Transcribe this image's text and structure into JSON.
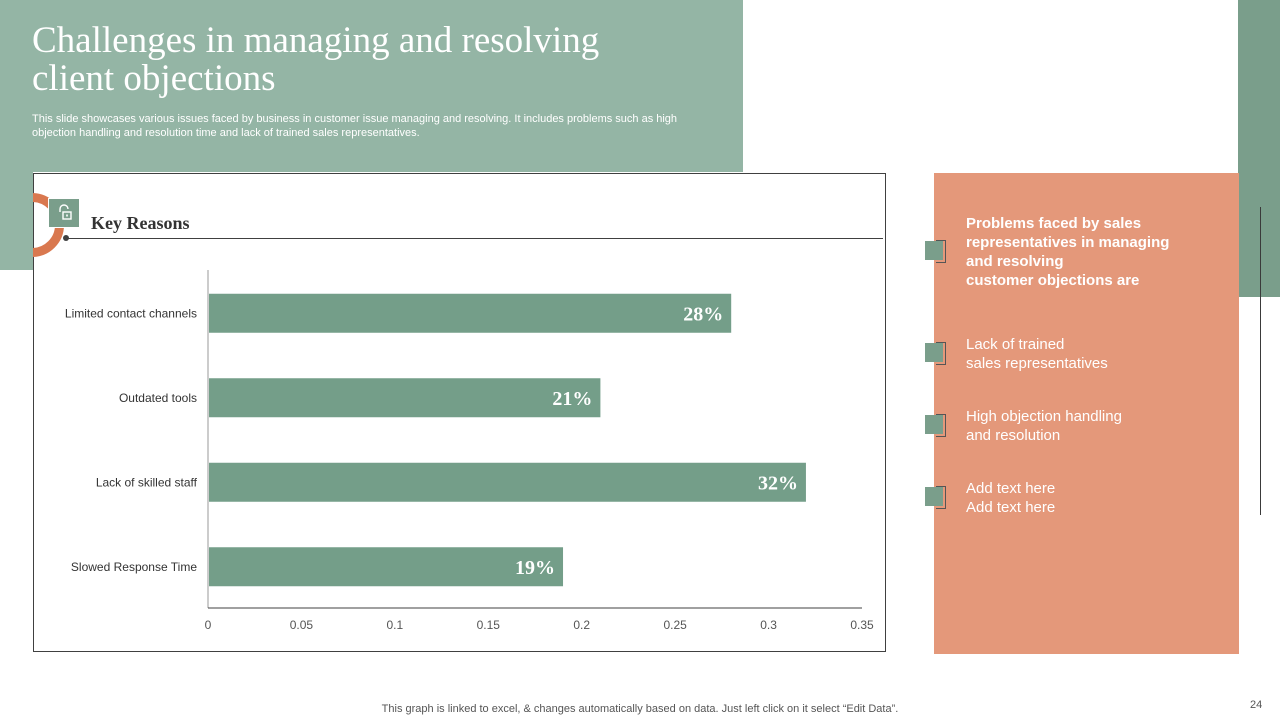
{
  "slide": {
    "title": "Challenges in managing and resolving client objections",
    "subtitle": "This slide showcases various issues faced by business in customer issue managing and resolving. It includes problems such as high objection handling and resolution time and lack of trained sales representatives.",
    "footer_note": "This graph is linked to excel, & changes automatically based on data. Just left click on it select “Edit Data”.",
    "page_number": "24"
  },
  "chart_section": {
    "heading": "Key Reasons",
    "icon": "lock-icon"
  },
  "chart_data": {
    "type": "bar",
    "orientation": "horizontal",
    "categories": [
      "Limited contact channels",
      "Outdated tools",
      "Lack of skilled staff",
      "Slowed Response Time"
    ],
    "values": [
      0.28,
      0.21,
      0.32,
      0.19
    ],
    "data_labels": [
      "28%",
      "21%",
      "32%",
      "19%"
    ],
    "x_ticks": [
      "0",
      "0.05",
      "0.1",
      "0.15",
      "0.2",
      "0.25",
      "0.3",
      "0.35"
    ],
    "xlim": [
      0,
      0.35
    ],
    "title": "",
    "xlabel": "",
    "ylabel": "",
    "grid": false,
    "bar_color": "#749e89"
  },
  "panel": {
    "heading": "Problems faced by sales\nrepresentatives in managing\nand resolving\ncustomer objections are",
    "items": [
      "Lack of trained\nsales representatives",
      "High objection handling\nand resolution",
      "Add text here\nAdd text here"
    ]
  },
  "colors": {
    "header_green": "#94b5a5",
    "accent_green": "#7a9e8b",
    "panel_orange": "#e4987a",
    "ring_orange": "#d9784f"
  }
}
